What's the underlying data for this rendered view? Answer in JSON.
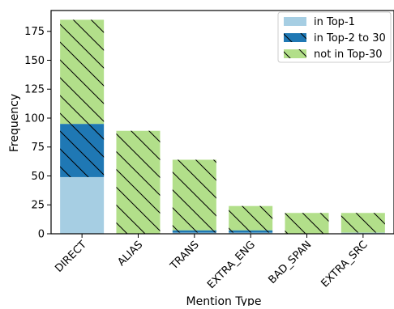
{
  "chart_data": {
    "type": "bar",
    "stacked": true,
    "categories": [
      "DIRECT",
      "ALIAS",
      "TRANS",
      "EXTRA_ENG",
      "BAD_SPAN",
      "EXTRA_SRC"
    ],
    "series": [
      {
        "name": "in Top-1",
        "color": "#a6cee3",
        "hatch": "none",
        "values": [
          49,
          0,
          1,
          1,
          0,
          1
        ]
      },
      {
        "name": "in Top-2 to 30",
        "color": "#1f78b4",
        "hatch": "diagonal",
        "values": [
          46,
          0,
          2,
          2,
          0,
          0
        ]
      },
      {
        "name": "not in Top-30",
        "color": "#b2df8a",
        "hatch": "diagonal",
        "values": [
          90,
          89,
          61,
          21,
          18,
          17
        ]
      }
    ],
    "xlabel": "Mention Type",
    "ylabel": "Frequency",
    "ylim": [
      0,
      193
    ],
    "yticks": [
      0,
      25,
      50,
      75,
      100,
      125,
      150,
      175
    ],
    "legend_position": "top-right",
    "grid": false
  }
}
